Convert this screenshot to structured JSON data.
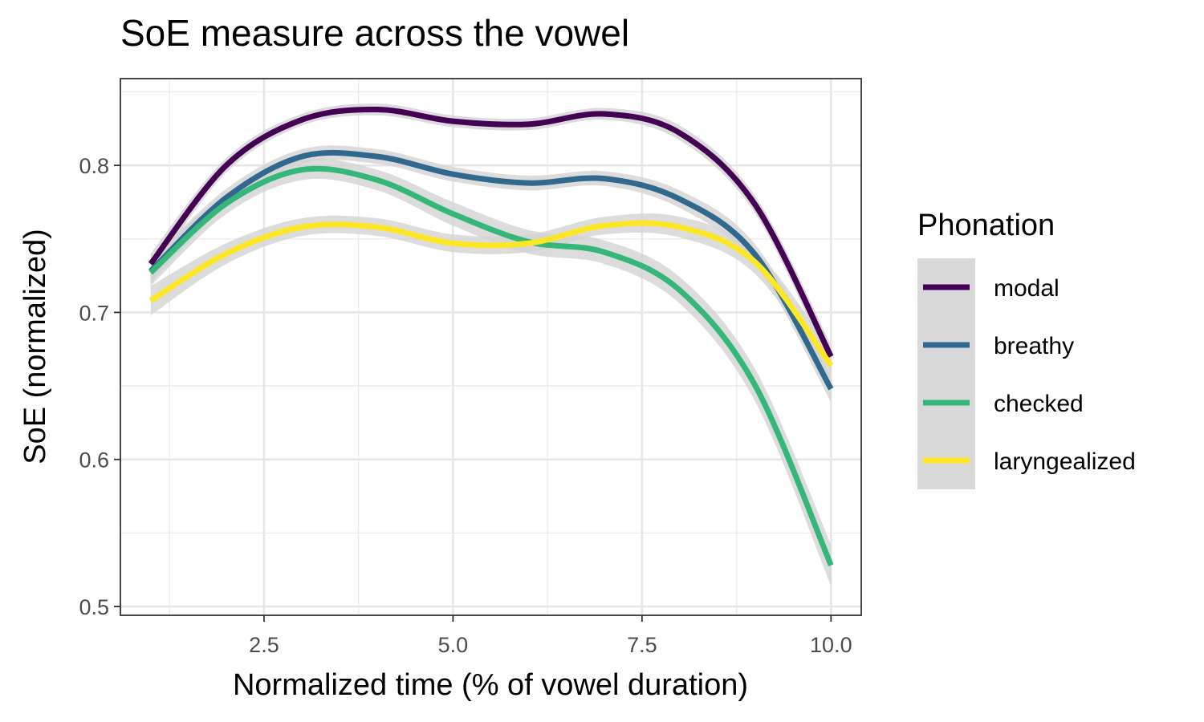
{
  "chart_data": {
    "type": "line",
    "title": "SoE measure across the vowel",
    "xlabel": "Normalized time (% of vowel duration)",
    "ylabel": "SoE (normalized)",
    "xlim": [
      0.6,
      10.4
    ],
    "ylim": [
      0.494,
      0.859
    ],
    "x_ticks": [
      2.5,
      5.0,
      7.5,
      10.0
    ],
    "x_tick_labels": [
      "2.5",
      "5.0",
      "7.5",
      "10.0"
    ],
    "y_ticks": [
      0.5,
      0.6,
      0.7,
      0.8
    ],
    "y_tick_labels": [
      "0.5",
      "0.6",
      "0.7",
      "0.8"
    ],
    "grid": true,
    "confidence_band_color": "#d3d3d3",
    "legend": {
      "title": "Phonation",
      "position": "right"
    },
    "x": [
      1,
      2,
      3,
      4,
      5,
      6,
      7,
      8,
      9,
      10
    ],
    "series": [
      {
        "name": "modal",
        "color": "#440154",
        "values": [
          0.733,
          0.8,
          0.831,
          0.838,
          0.83,
          0.828,
          0.835,
          0.822,
          0.773,
          0.67
        ],
        "band": [
          0.007,
          0.005,
          0.004,
          0.004,
          0.004,
          0.004,
          0.004,
          0.005,
          0.006,
          0.008
        ]
      },
      {
        "name": "breathy",
        "color": "#31688E",
        "values": [
          0.728,
          0.778,
          0.806,
          0.806,
          0.794,
          0.788,
          0.791,
          0.777,
          0.739,
          0.648
        ],
        "band": [
          0.008,
          0.006,
          0.005,
          0.005,
          0.005,
          0.005,
          0.005,
          0.006,
          0.007,
          0.009
        ]
      },
      {
        "name": "checked",
        "color": "#35B779",
        "values": [
          0.727,
          0.774,
          0.797,
          0.79,
          0.767,
          0.748,
          0.741,
          0.715,
          0.65,
          0.528
        ],
        "band": [
          0.009,
          0.007,
          0.007,
          0.007,
          0.008,
          0.008,
          0.008,
          0.009,
          0.011,
          0.014
        ]
      },
      {
        "name": "laryngealized",
        "color": "#FDE725",
        "values": [
          0.708,
          0.74,
          0.758,
          0.758,
          0.747,
          0.747,
          0.759,
          0.758,
          0.734,
          0.664
        ],
        "band": [
          0.01,
          0.007,
          0.006,
          0.006,
          0.006,
          0.006,
          0.006,
          0.007,
          0.008,
          0.01
        ]
      }
    ]
  }
}
